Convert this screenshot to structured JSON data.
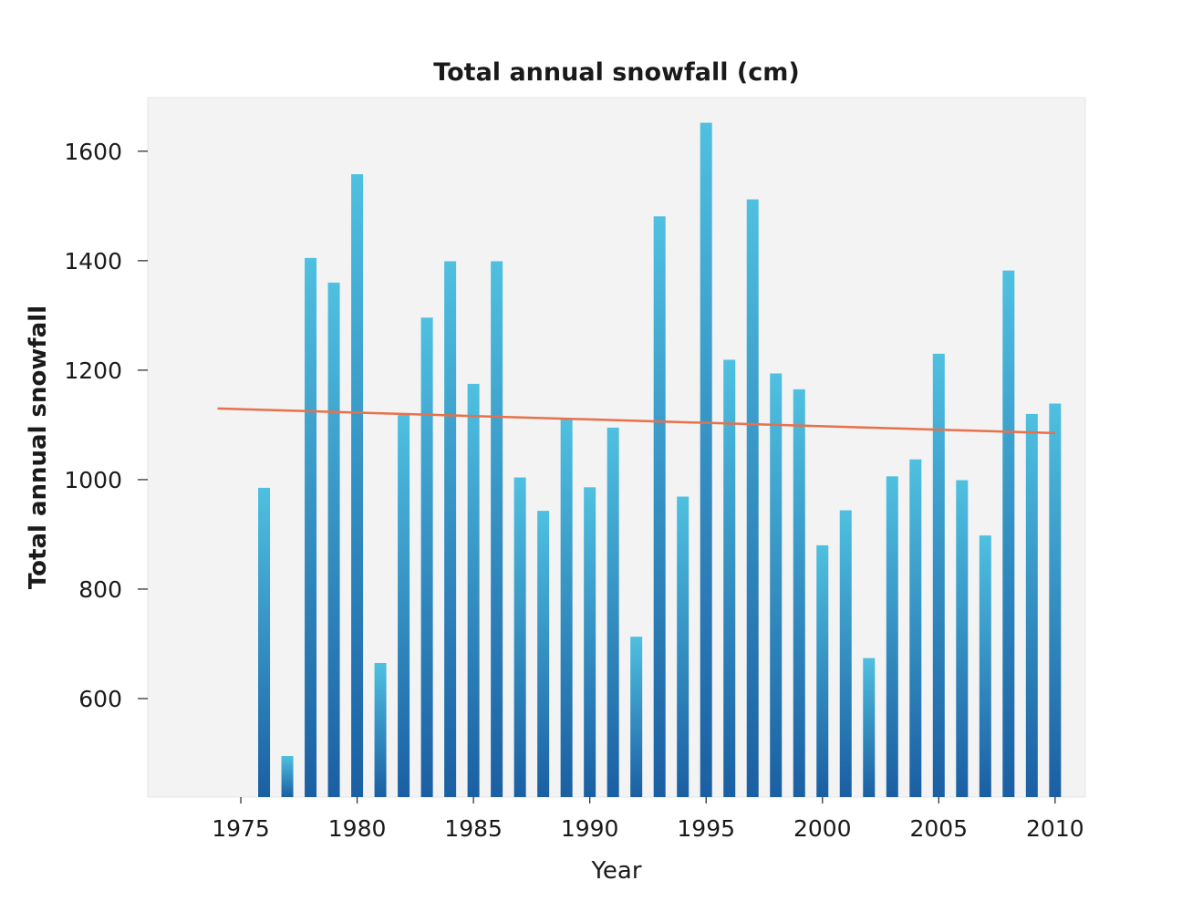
{
  "chart_data": {
    "type": "bar",
    "title": "Total annual snowfall (cm)",
    "xlabel": "Year",
    "ylabel": "Total annual snowfall",
    "x": [
      1976,
      1977,
      1978,
      1979,
      1980,
      1981,
      1982,
      1983,
      1984,
      1985,
      1986,
      1987,
      1988,
      1989,
      1990,
      1991,
      1992,
      1993,
      1994,
      1995,
      1996,
      1997,
      1998,
      1999,
      2000,
      2001,
      2002,
      2003,
      2004,
      2005,
      2006,
      2007,
      2008,
      2009,
      2010
    ],
    "values": [
      985,
      495,
      1405,
      1360,
      1558,
      665,
      1118,
      1296,
      1399,
      1175,
      1399,
      1004,
      943,
      1110,
      986,
      1095,
      713,
      1481,
      969,
      1652,
      1219,
      1512,
      1194,
      1165,
      880,
      944,
      674,
      1006,
      1037,
      1230,
      999,
      898,
      1382,
      1120,
      1139
    ],
    "trendline": {
      "x": [
        1974,
        2010
      ],
      "y": [
        1130,
        1085
      ],
      "color": "#e8704a"
    },
    "xlim": [
      1971,
      2011.3
    ],
    "ylim": [
      420,
      1698
    ],
    "xticks": [
      1975,
      1980,
      1985,
      1990,
      1995,
      2000,
      2005,
      2010
    ],
    "yticks": [
      600,
      800,
      1000,
      1200,
      1400,
      1600
    ],
    "grid": false,
    "bar_color_top": "#4fc0e0",
    "bar_color_bottom": "#1a5fa3",
    "plot_background": "#f3f3f3"
  }
}
